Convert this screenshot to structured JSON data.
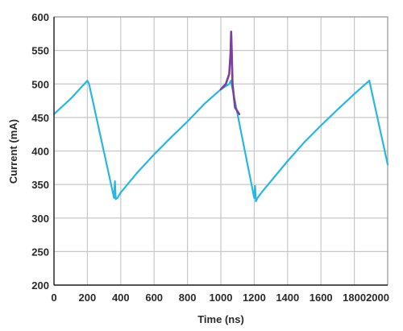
{
  "chart_data": {
    "type": "line",
    "title": "",
    "xlabel": "Time (ns)",
    "ylabel": "Current (mA)",
    "xlim": [
      0,
      2000
    ],
    "ylim": [
      200,
      600
    ],
    "x_ticks": [
      0,
      200,
      400,
      600,
      800,
      1000,
      1200,
      1400,
      1600,
      1800,
      2000
    ],
    "y_ticks": [
      200,
      250,
      300,
      350,
      400,
      450,
      500,
      550,
      600
    ],
    "x_tick_labels": [
      "0",
      "200",
      "400",
      "600",
      "800",
      "1000",
      "1200",
      "1400",
      "1600",
      "1800",
      "2000"
    ],
    "y_tick_labels": [
      "200",
      "250",
      "300",
      "350",
      "400",
      "450",
      "500",
      "550",
      "600"
    ],
    "grid": true,
    "legend": "none",
    "series": [
      {
        "color": "#29b6e0",
        "x": [
          0,
          100,
          200,
          210,
          360,
          365,
          370,
          380,
          400,
          500,
          600,
          700,
          800,
          900,
          1000,
          1050,
          1060,
          1200,
          1205,
          1210,
          1220,
          1250,
          1300,
          1400,
          1500,
          1600,
          1700,
          1800,
          1880,
          1890,
          2000
        ],
        "y": [
          455,
          478,
          505,
          500,
          330,
          355,
          328,
          330,
          338,
          368,
          395,
          420,
          444,
          470,
          492,
          500,
          505,
          330,
          348,
          325,
          330,
          340,
          355,
          385,
          413,
          438,
          462,
          485,
          503,
          505,
          380
        ]
      },
      {
        "color": "#7b3f9e",
        "x": [
          1000,
          1030,
          1050,
          1058,
          1062,
          1065,
          1070,
          1085,
          1110
        ],
        "y": [
          492,
          500,
          515,
          545,
          578,
          550,
          500,
          465,
          455
        ]
      }
    ]
  }
}
